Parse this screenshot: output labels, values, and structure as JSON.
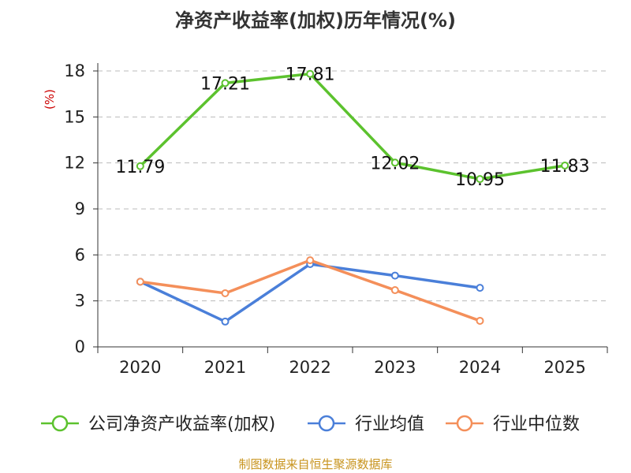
{
  "chart_data": {
    "type": "line",
    "title": "净资产收益率(加权)历年情况(%)",
    "ylabel": "(%)",
    "xlabel": "",
    "categories": [
      "2020",
      "2021",
      "2022",
      "2023",
      "2024",
      "2025"
    ],
    "ylim": [
      0,
      18
    ],
    "yticks": [
      0,
      3,
      6,
      9,
      12,
      15,
      18
    ],
    "grid": true,
    "legend_position": "bottom",
    "series": [
      {
        "name": "公司净资产收益率(加权)",
        "color": "#5cc22e",
        "values": [
          11.79,
          17.21,
          17.81,
          12.02,
          10.95,
          11.83
        ],
        "labels": [
          "11.79",
          "17.21",
          "17.81",
          "12.02",
          "10.95",
          "11.83"
        ],
        "show_labels": true
      },
      {
        "name": "行业均值",
        "color": "#4a7fd9",
        "values": [
          4.25,
          1.65,
          5.4,
          4.65,
          3.85,
          null
        ],
        "show_labels": false
      },
      {
        "name": "行业中位数",
        "color": "#f48f5a",
        "values": [
          4.25,
          3.5,
          5.65,
          3.7,
          1.7,
          null
        ],
        "show_labels": false
      }
    ]
  },
  "source": "制图数据来自恒生聚源数据库"
}
